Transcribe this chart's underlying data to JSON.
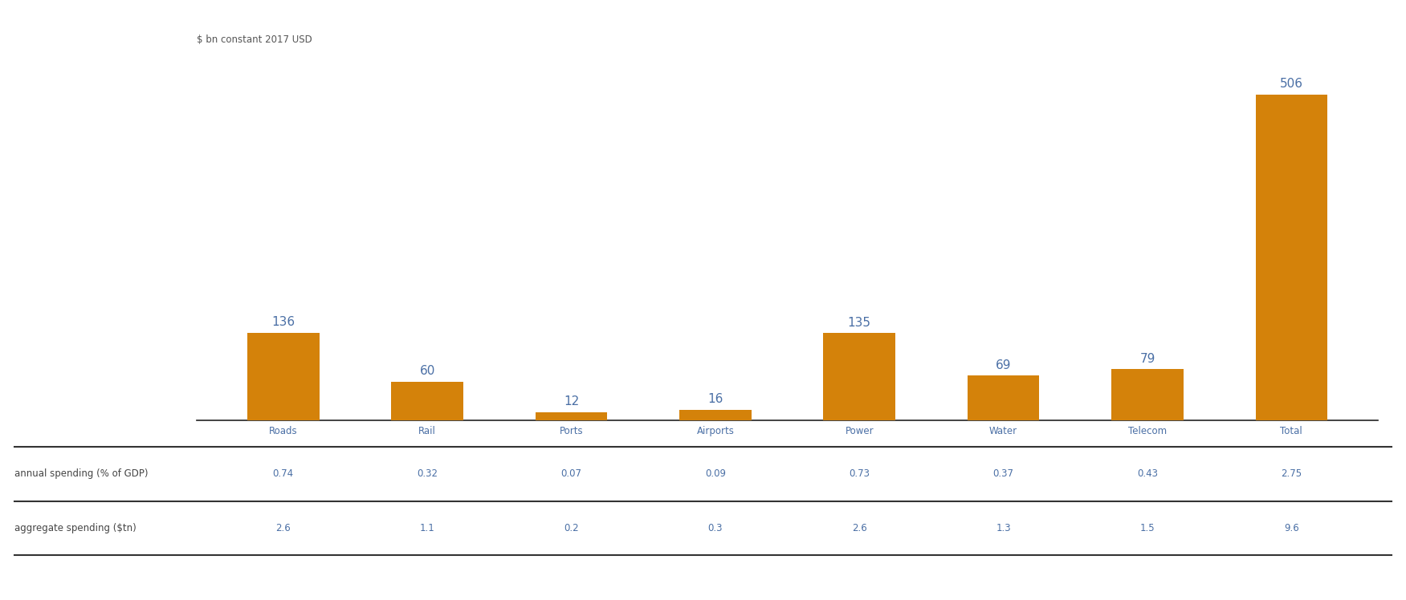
{
  "categories": [
    "Roads",
    "Rail",
    "Ports",
    "Airports",
    "Power",
    "Water",
    "Telecom",
    "Total"
  ],
  "values": [
    136,
    60,
    12,
    16,
    135,
    69,
    79,
    506
  ],
  "bar_color": "#D4820A",
  "sup_label": "$ bn constant 2017 USD",
  "ylim": [
    0,
    560
  ],
  "bar_width": 0.5,
  "value_labels": [
    "136",
    "60",
    "12",
    "16",
    "135",
    "69",
    "79",
    "506"
  ],
  "value_label_color": "#4A6FA5",
  "row1_label": "annual spending (% of GDP)",
  "row2_label": "aggregate spending ($tn)",
  "row1_values": [
    "0.74",
    "0.32",
    "0.07",
    "0.09",
    "0.73",
    "0.37",
    "0.43",
    "2.75"
  ],
  "row2_values": [
    "2.6",
    "1.1",
    "0.2",
    "0.3",
    "2.6",
    "1.3",
    "1.5",
    "9.6"
  ],
  "table_label_color": "#444444",
  "table_value_color": "#4A6FA5",
  "cat_label_color": "#4A6FA5",
  "background_color": "#FFFFFF",
  "sup_label_fontsize": 8.5,
  "value_label_fontsize": 11,
  "tick_label_fontsize": 8.5,
  "table_fontsize": 8.5
}
